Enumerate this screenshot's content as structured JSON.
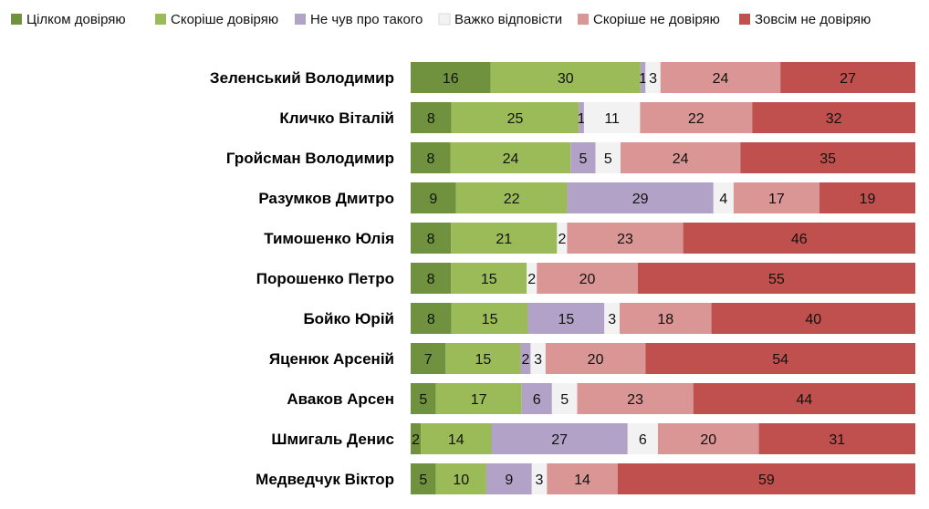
{
  "chart_data": {
    "type": "bar",
    "orientation": "horizontal",
    "stacked": true,
    "legend_position": "top",
    "grid": false,
    "xlim": [
      0,
      100
    ],
    "categories": [
      "Зеленський Володимир",
      "Кличко Віталій",
      "Гройсман Володимир",
      "Разумков Дмитро",
      "Тимошенко Юлія",
      "Порошенко Петро",
      "Бойко Юрій",
      "Яценюк Арсеній",
      "Аваков Арсен",
      "Шмигаль Денис",
      "Медведчук Віктор"
    ],
    "series": [
      {
        "name": "Цілком довіряю",
        "color": "#70923e",
        "values": [
          16,
          8,
          8,
          9,
          8,
          8,
          8,
          7,
          5,
          2,
          5
        ]
      },
      {
        "name": "Скоріше довіряю",
        "color": "#9bbb59",
        "values": [
          30,
          25,
          24,
          22,
          21,
          15,
          15,
          15,
          17,
          14,
          10
        ]
      },
      {
        "name": "Не чув про такого",
        "color": "#b3a2c7",
        "values": [
          1,
          1,
          5,
          29,
          0,
          0,
          15,
          2,
          6,
          27,
          9
        ]
      },
      {
        "name": "Важко відповісти",
        "color": "#f2f2f2",
        "values": [
          3,
          11,
          5,
          4,
          2,
          2,
          3,
          3,
          5,
          6,
          3
        ]
      },
      {
        "name": "Скоріше не довіряю",
        "color": "#da9694",
        "values": [
          24,
          22,
          24,
          17,
          23,
          20,
          18,
          20,
          23,
          20,
          14
        ]
      },
      {
        "name": "Зовсім не довіряю",
        "color": "#c0504d",
        "values": [
          27,
          32,
          35,
          19,
          46,
          55,
          40,
          54,
          44,
          31,
          59
        ]
      }
    ]
  }
}
